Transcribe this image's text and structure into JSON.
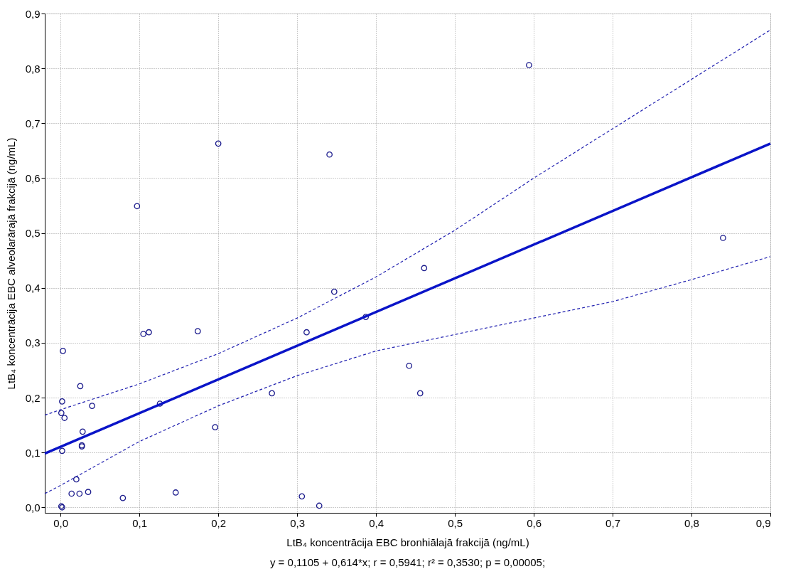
{
  "chart_data": {
    "type": "scatter",
    "xlabel": "LtB₄ koncentrācija EBC bronhiālajā frakcijā (ng/mL)",
    "ylabel": "LtB₄ koncentrācija EBC alveolarārajā frakcijā (ng/mL)",
    "annotations": [
      "y = 0,1105 + 0,614*x; r = 0,5941; r² = 0,3530;  p = 0,00005;"
    ],
    "xlim": [
      -0.02,
      0.9
    ],
    "ylim": [
      -0.01,
      0.9
    ],
    "xticks": [
      {
        "value": 0,
        "label": "0,0"
      },
      {
        "value": 0.1,
        "label": "0,1"
      },
      {
        "value": 0.2,
        "label": "0,2"
      },
      {
        "value": 0.3,
        "label": "0,3"
      },
      {
        "value": 0.4,
        "label": "0,4"
      },
      {
        "value": 0.5,
        "label": "0,5"
      },
      {
        "value": 0.6,
        "label": "0,6"
      },
      {
        "value": 0.7,
        "label": "0,7"
      },
      {
        "value": 0.8,
        "label": "0,8"
      },
      {
        "value": 0.9,
        "label": "0,9"
      }
    ],
    "yticks": [
      {
        "value": 0,
        "label": "0,0"
      },
      {
        "value": 0.1,
        "label": "0,1"
      },
      {
        "value": 0.2,
        "label": "0,2"
      },
      {
        "value": 0.3,
        "label": "0,3"
      },
      {
        "value": 0.4,
        "label": "0,4"
      },
      {
        "value": 0.5,
        "label": "0,5"
      },
      {
        "value": 0.6,
        "label": "0,6"
      },
      {
        "value": 0.7,
        "label": "0,7"
      },
      {
        "value": 0.8,
        "label": "0,8"
      },
      {
        "value": 0.9,
        "label": "0,9"
      }
    ],
    "grid": true,
    "series": [
      {
        "marker": "circle",
        "color": "#1a1a8c",
        "x": [
          0.003,
          0.002,
          0.001,
          0.005,
          0.002,
          0.001,
          0.002,
          0.025,
          0.04,
          0.028,
          0.027,
          0.027,
          0.02,
          0.014,
          0.024,
          0.035,
          0.079,
          0.097,
          0.105,
          0.112,
          0.126,
          0.146,
          0.174,
          0.196,
          0.2,
          0.268,
          0.306,
          0.312,
          0.328,
          0.341,
          0.347,
          0.387,
          0.442,
          0.456,
          0.461,
          0.594,
          0.84
        ],
        "values": [
          0.285,
          0.193,
          0.172,
          0.163,
          0.103,
          0.002,
          0.0,
          0.221,
          0.185,
          0.138,
          0.113,
          0.111,
          0.051,
          0.025,
          0.025,
          0.028,
          0.017,
          0.549,
          0.316,
          0.319,
          0.189,
          0.027,
          0.321,
          0.146,
          0.663,
          0.208,
          0.02,
          0.319,
          0.003,
          0.643,
          0.393,
          0.347,
          0.258,
          0.208,
          0.436,
          0.806,
          0.491
        ]
      },
      {
        "type": "line",
        "line_style": "solid",
        "color": "#0a14c8",
        "x": [
          -0.02,
          0.9
        ],
        "values": [
          0.098,
          0.663
        ]
      },
      {
        "type": "line",
        "line_style": "dashed",
        "color": "#2020b0",
        "x": [
          -0.02,
          0,
          0.1,
          0.2,
          0.3,
          0.4,
          0.5,
          0.6,
          0.7,
          0.8,
          0.9
        ],
        "values": [
          0.168,
          0.178,
          0.225,
          0.28,
          0.345,
          0.42,
          0.505,
          0.6,
          0.69,
          0.78,
          0.87
        ]
      },
      {
        "type": "line",
        "line_style": "dashed",
        "color": "#2020b0",
        "x": [
          -0.02,
          0,
          0.1,
          0.2,
          0.3,
          0.4,
          0.5,
          0.6,
          0.7,
          0.8,
          0.9
        ],
        "values": [
          0.025,
          0.04,
          0.12,
          0.185,
          0.24,
          0.285,
          0.315,
          0.345,
          0.375,
          0.415,
          0.457
        ]
      }
    ]
  }
}
